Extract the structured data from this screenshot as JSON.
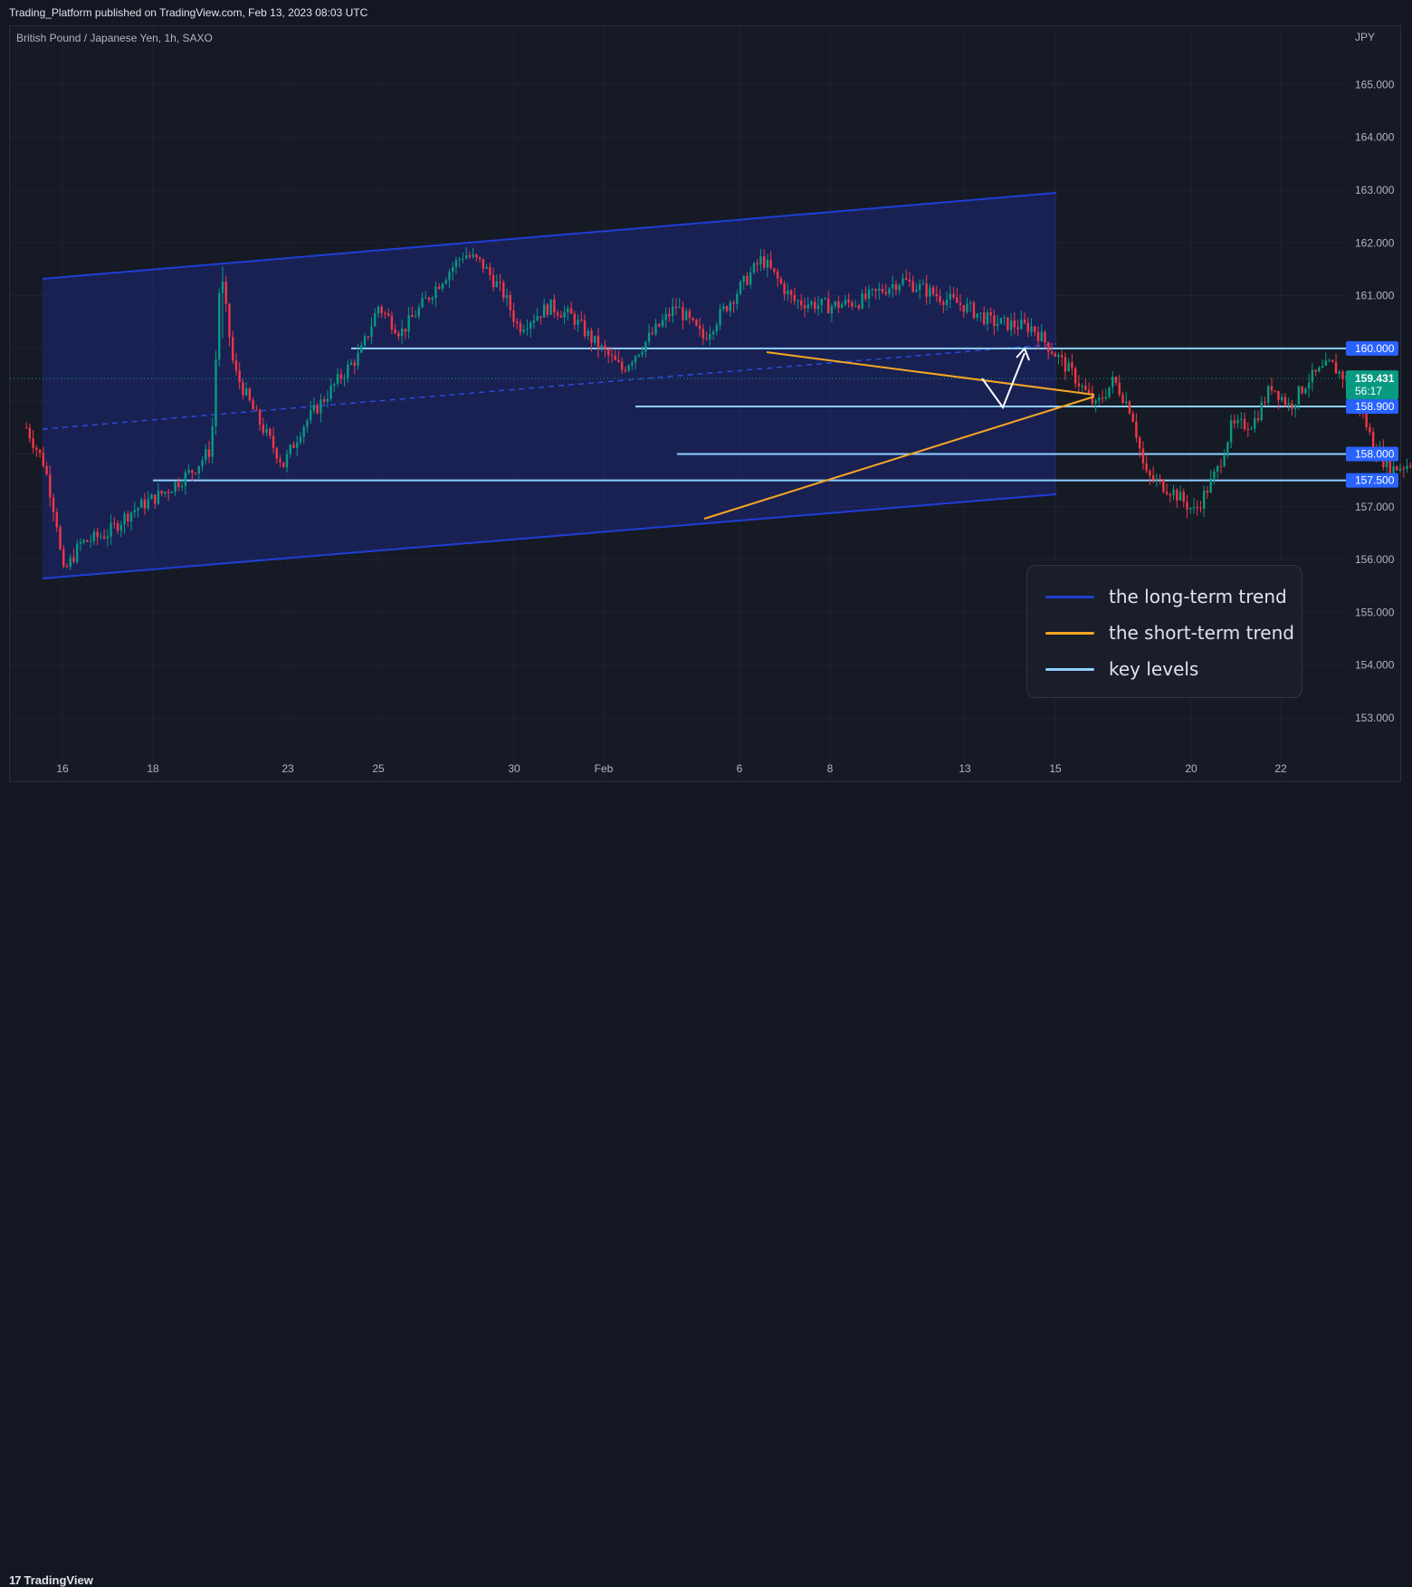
{
  "header": {
    "published": "Trading_Platform published on TradingView.com, Feb 13, 2023 08:03 UTC"
  },
  "chart_data": {
    "type": "candlestick",
    "symbol": "British Pound / Japanese Yen, 1h, SAXO",
    "currency": "JPY",
    "ylim": [
      152.3,
      166.0
    ],
    "y_ticks": [
      "165.000",
      "164.000",
      "163.000",
      "162.000",
      "161.000",
      "160.000",
      "159.000",
      "158.000",
      "157.000",
      "156.000",
      "155.000",
      "154.000",
      "153.000"
    ],
    "x_ticks": [
      "16",
      "18",
      "23",
      "25",
      "30",
      "Feb",
      "6",
      "8",
      "13",
      "15",
      "20",
      "22"
    ],
    "last_price": {
      "value": "159.431",
      "countdown": "56:17",
      "color": "#089981"
    },
    "price_path": [
      [
        -0.8,
        158.5
      ],
      [
        -0.4,
        157.8
      ],
      [
        -0.1,
        156.6
      ],
      [
        0,
        155.7
      ],
      [
        0.4,
        156.3
      ],
      [
        1,
        156.5
      ],
      [
        1.5,
        156.9
      ],
      [
        2.3,
        157.3
      ],
      [
        2.9,
        157.7
      ],
      [
        3.3,
        158.1
      ],
      [
        3.5,
        161.5
      ],
      [
        3.8,
        159.6
      ],
      [
        4.3,
        158.7
      ],
      [
        4.9,
        157.8
      ],
      [
        5.3,
        158.5
      ],
      [
        6.2,
        159.5
      ],
      [
        6.6,
        159.9
      ],
      [
        7,
        160.8
      ],
      [
        7.5,
        160.3
      ],
      [
        8.4,
        161.3
      ],
      [
        8.9,
        161.8
      ],
      [
        9.3,
        161.6
      ],
      [
        9.8,
        161.0
      ],
      [
        10.1,
        160.4
      ],
      [
        10.8,
        160.8
      ],
      [
        11.3,
        160.6
      ],
      [
        11.7,
        160.2
      ],
      [
        12.4,
        159.6
      ],
      [
        12.9,
        160.1
      ],
      [
        13.6,
        160.8
      ],
      [
        14.2,
        160.2
      ],
      [
        14.8,
        160.9
      ],
      [
        15.5,
        161.7
      ],
      [
        16.2,
        160.9
      ],
      [
        17.0,
        160.8
      ],
      [
        17.7,
        160.9
      ],
      [
        18.6,
        161.3
      ],
      [
        19.4,
        161.0
      ],
      [
        20.0,
        160.8
      ],
      [
        20.6,
        160.5
      ],
      [
        21.5,
        160.4
      ],
      [
        22.4,
        159.5
      ],
      [
        22.9,
        158.9
      ],
      [
        23.3,
        159.4
      ],
      [
        23.7,
        158.8
      ],
      [
        24.0,
        157.6
      ],
      [
        24.6,
        157.3
      ],
      [
        25.1,
        156.9
      ],
      [
        25.6,
        157.7
      ],
      [
        25.9,
        158.5
      ],
      [
        26.4,
        158.6
      ],
      [
        26.8,
        159.3
      ],
      [
        27.2,
        158.9
      ],
      [
        27.6,
        159.4
      ],
      [
        28.1,
        159.7
      ],
      [
        28.6,
        159.3
      ],
      [
        29.0,
        158.3
      ],
      [
        29.4,
        157.7
      ],
      [
        29.8,
        157.8
      ],
      [
        30.4,
        158.1
      ],
      [
        31.0,
        158.6
      ],
      [
        31.6,
        158.8
      ],
      [
        32.1,
        159.1
      ],
      [
        32.6,
        159.3
      ],
      [
        33.0,
        159.4
      ],
      [
        33.4,
        158.9
      ],
      [
        33.6,
        157.8
      ],
      [
        33.9,
        158.5
      ],
      [
        34.4,
        158.6
      ],
      [
        34.9,
        158.9
      ],
      [
        35.3,
        159.43
      ]
    ]
  },
  "drawings": {
    "key_levels": [
      "160.000",
      "158.900",
      "158.000",
      "157.500"
    ],
    "colors": {
      "long_term": "#1e3fd6",
      "short_term": "#f5a623",
      "key_levels": "#8fd0ff",
      "up_candle": "#089981",
      "down_candle": "#f23645",
      "label_bg": "#2962ff"
    }
  },
  "legend": {
    "items": [
      {
        "label": "the long-term trend",
        "color": "#1e3fd6"
      },
      {
        "label": "the short-term trend",
        "color": "#f5a623"
      },
      {
        "label": "key levels",
        "color": "#8fd0ff"
      }
    ]
  },
  "footer": {
    "brand": "TradingView"
  }
}
